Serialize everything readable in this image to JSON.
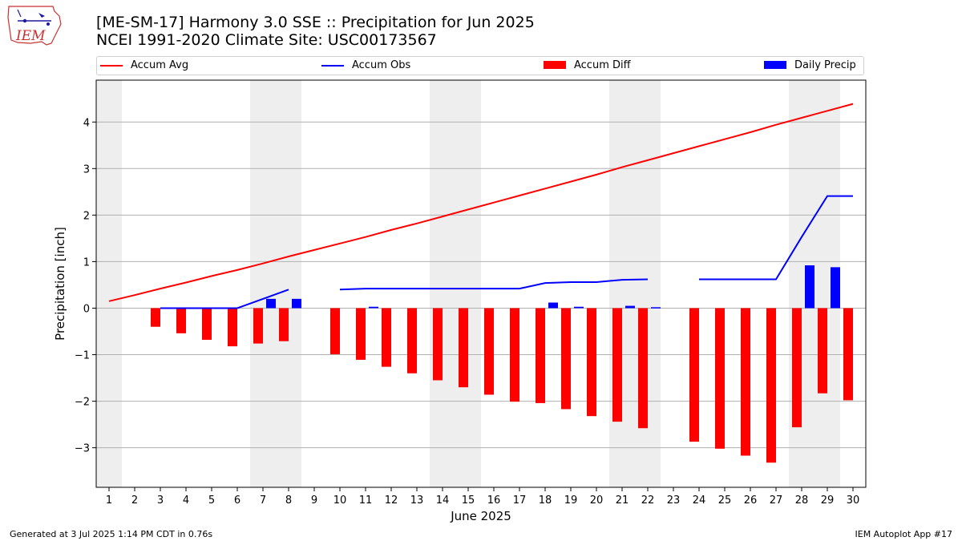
{
  "title_line1": "[ME-SM-17] Harmony 3.0 SSE :: Precipitation for Jun 2025",
  "title_line2": "NCEI 1991-2020 Climate Site: USC00173567",
  "logo_text": "IEM",
  "footer_left": "Generated at 3 Jul 2025 1:14 PM CDT in 0.76s",
  "footer_right": "IEM Autoplot App #17",
  "colors": {
    "avg": "#ff0000",
    "obs": "#0000ff",
    "diff": "#ff0000",
    "daily": "#0000ff",
    "weekend": "#eeeeee",
    "grid": "#b0b0b0"
  },
  "legend": [
    {
      "label": "Accum Avg",
      "kind": "line",
      "color": "#ff0000"
    },
    {
      "label": "Accum Obs",
      "kind": "line",
      "color": "#0000ff"
    },
    {
      "label": "Accum Diff",
      "kind": "box",
      "color": "#ff0000"
    },
    {
      "label": "Daily Precip",
      "kind": "box",
      "color": "#0000ff"
    }
  ],
  "chart_data": {
    "type": "bar",
    "xlabel": "June 2025",
    "ylabel": "Precipitation [inch]",
    "xlim": [
      0.5,
      30.5
    ],
    "ylim": [
      -3.85,
      4.9
    ],
    "grid": "horizontal",
    "legend_placement": "top",
    "x": [
      1,
      2,
      3,
      4,
      5,
      6,
      7,
      8,
      9,
      10,
      11,
      12,
      13,
      14,
      15,
      16,
      17,
      18,
      19,
      20,
      21,
      22,
      23,
      24,
      25,
      26,
      27,
      28,
      29,
      30
    ],
    "yticks": [
      -3,
      -2,
      -1,
      0,
      1,
      2,
      3,
      4
    ],
    "ytick_labels": [
      "−3",
      "−2",
      "−1",
      "0",
      "1",
      "2",
      "3",
      "4"
    ],
    "weekend_days": [
      1,
      7,
      8,
      14,
      15,
      21,
      22,
      28,
      29
    ],
    "series": [
      {
        "name": "Accum Avg",
        "type": "line",
        "values": [
          0.15,
          0.28,
          0.42,
          0.55,
          0.69,
          0.82,
          0.96,
          1.11,
          1.25,
          1.39,
          1.53,
          1.68,
          1.82,
          1.97,
          2.12,
          2.27,
          2.42,
          2.57,
          2.72,
          2.87,
          3.03,
          3.18,
          3.33,
          3.48,
          3.63,
          3.78,
          3.94,
          4.09,
          4.24,
          4.39
        ]
      },
      {
        "name": "Accum Obs",
        "type": "line",
        "values": [
          null,
          null,
          0.0,
          0.0,
          0.0,
          0.0,
          0.2,
          0.4,
          null,
          0.4,
          0.42,
          0.42,
          0.42,
          0.42,
          0.42,
          0.42,
          0.42,
          0.54,
          0.56,
          0.56,
          0.61,
          0.62,
          null,
          0.62,
          0.62,
          0.62,
          0.62,
          1.53,
          2.41,
          2.41
        ]
      },
      {
        "name": "Accum Diff",
        "type": "bar",
        "values": [
          null,
          null,
          -0.4,
          -0.54,
          -0.68,
          -0.82,
          -0.76,
          -0.71,
          null,
          -0.99,
          -1.11,
          -1.26,
          -1.4,
          -1.55,
          -1.7,
          -1.86,
          -2.01,
          -2.04,
          -2.17,
          -2.32,
          -2.44,
          -2.58,
          null,
          -2.87,
          -3.02,
          -3.17,
          -3.32,
          -2.56,
          -1.83,
          -1.98
        ]
      },
      {
        "name": "Daily Precip",
        "type": "bar",
        "values": [
          null,
          null,
          0,
          0,
          0,
          0,
          0.2,
          0.2,
          null,
          0,
          0.03,
          0,
          0,
          0,
          0,
          0,
          0,
          0.12,
          0.03,
          0,
          0.05,
          0.02,
          null,
          0,
          0,
          0,
          0,
          0.92,
          0.88,
          0
        ]
      }
    ]
  }
}
